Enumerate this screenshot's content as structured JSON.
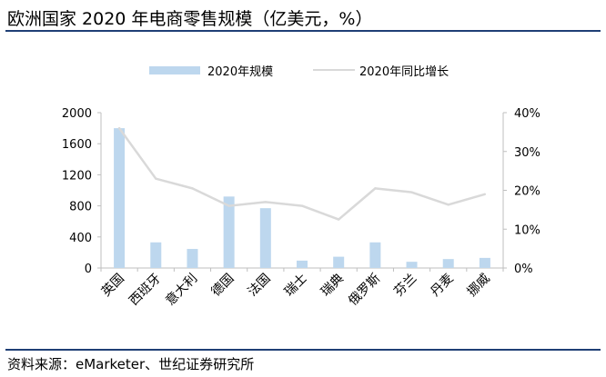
{
  "header": {
    "title": "欧洲国家 2020 年电商零售规模（亿美元，%）"
  },
  "footer": {
    "source": "资料来源：eMarketer、世纪证券研究所"
  },
  "colors": {
    "bar": "#bdd7ee",
    "line": "#d9d9d9",
    "axis": "#bfbfbf",
    "rule": "#1f3f75"
  },
  "chart_data": {
    "type": "bar",
    "categories": [
      "英国",
      "西班牙",
      "意大利",
      "德国",
      "法国",
      "瑞士",
      "瑞典",
      "俄罗斯",
      "芬兰",
      "丹麦",
      "挪威"
    ],
    "series": [
      {
        "name": "2020年规模",
        "type": "bar",
        "axis": "left",
        "values": [
          1800,
          330,
          245,
          920,
          770,
          95,
          145,
          330,
          80,
          115,
          130
        ]
      },
      {
        "name": "2020年同比增长",
        "type": "line",
        "axis": "right",
        "values": [
          36,
          23,
          20.5,
          16,
          17,
          16,
          12.5,
          20.5,
          19.5,
          16.3,
          19
        ]
      }
    ],
    "yleft": {
      "min": 0,
      "max": 2000,
      "ticks": [
        "0",
        "400",
        "800",
        "1200",
        "1600",
        "2000"
      ],
      "tickValues": [
        0,
        400,
        800,
        1200,
        1600,
        2000
      ]
    },
    "yright": {
      "min": 0,
      "max": 40,
      "ticks": [
        "0%",
        "10%",
        "20%",
        "30%",
        "40%"
      ],
      "tickValues": [
        0,
        10,
        20,
        30,
        40
      ]
    },
    "legend": "top-center",
    "grid": false
  }
}
